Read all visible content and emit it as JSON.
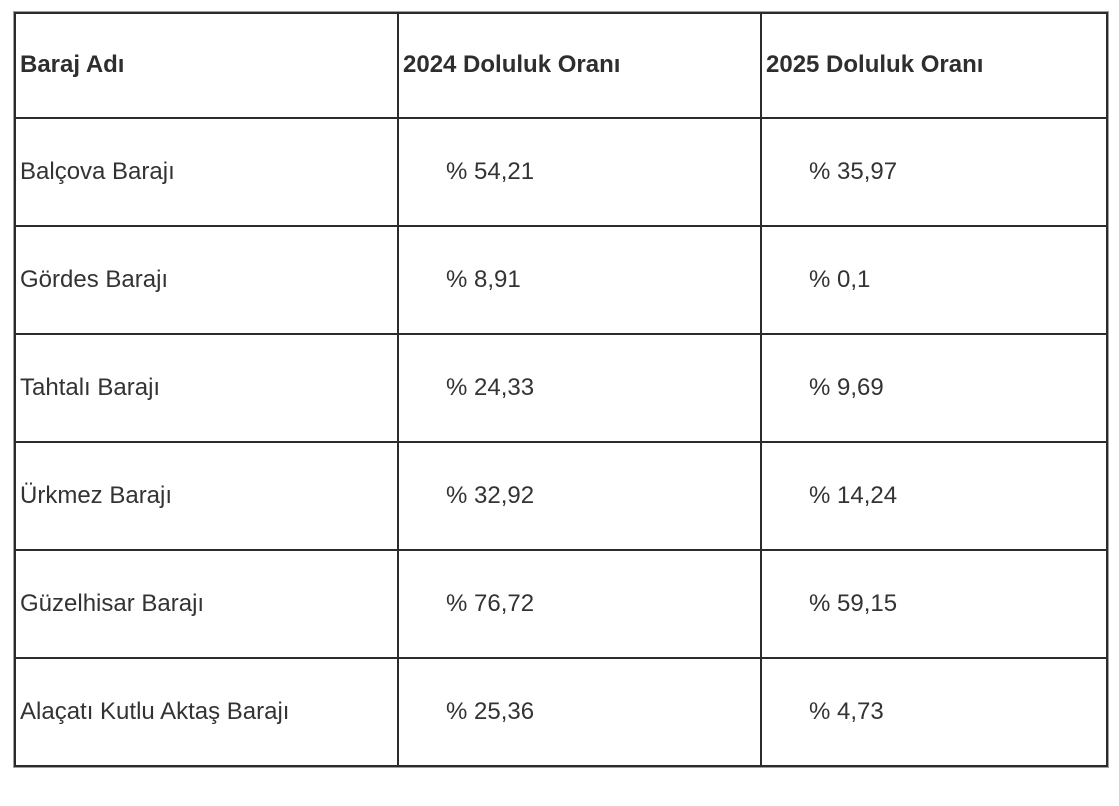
{
  "table": {
    "columns": [
      "Baraj Adı",
      "2024 Doluluk Oranı",
      "2025 Doluluk Oranı"
    ],
    "rows": [
      {
        "name": "Balçova Barajı",
        "v2024": "% 54,21",
        "v2025": "% 35,97"
      },
      {
        "name": "Gördes Barajı",
        "v2024": "% 8,91",
        "v2025": "% 0,1"
      },
      {
        "name": "Tahtalı Barajı",
        "v2024": "% 24,33",
        "v2025": "% 9,69"
      },
      {
        "name": "Ürkmez Barajı",
        "v2024": "% 32,92",
        "v2025": "% 14,24"
      },
      {
        "name": "Güzelhisar Barajı",
        "v2024": "% 76,72",
        "v2025": "% 59,15"
      },
      {
        "name": "Alaçatı Kutlu Aktaş Barajı",
        "v2024": "% 25,36",
        "v2025": "% 4,73"
      }
    ]
  },
  "chart_data": {
    "type": "table",
    "title": "",
    "columns": [
      "Baraj Adı",
      "2024 Doluluk Oranı",
      "2025 Doluluk Oranı"
    ],
    "categories": [
      "Balçova Barajı",
      "Gördes Barajı",
      "Tahtalı Barajı",
      "Ürkmez Barajı",
      "Güzelhisar Barajı",
      "Alaçatı Kutlu Aktaş Barajı"
    ],
    "series": [
      {
        "name": "2024 Doluluk Oranı",
        "values": [
          54.21,
          8.91,
          24.33,
          32.92,
          76.72,
          25.36
        ],
        "display": [
          "% 54,21",
          "% 8,91",
          "% 24,33",
          "% 32,92",
          "% 76,72",
          "% 25,36"
        ]
      },
      {
        "name": "2025 Doluluk Oranı",
        "values": [
          35.97,
          0.1,
          9.69,
          14.24,
          59.15,
          4.73
        ],
        "display": [
          "% 35,97",
          "% 0,1",
          "% 9,69",
          "% 14,24",
          "% 59,15",
          "% 4,73"
        ]
      }
    ],
    "unit": "percent"
  },
  "colors": {
    "background": "#ffffff",
    "border": "#2b2b2b",
    "outer_edge": "#9e9e9e",
    "text": "#333333"
  }
}
